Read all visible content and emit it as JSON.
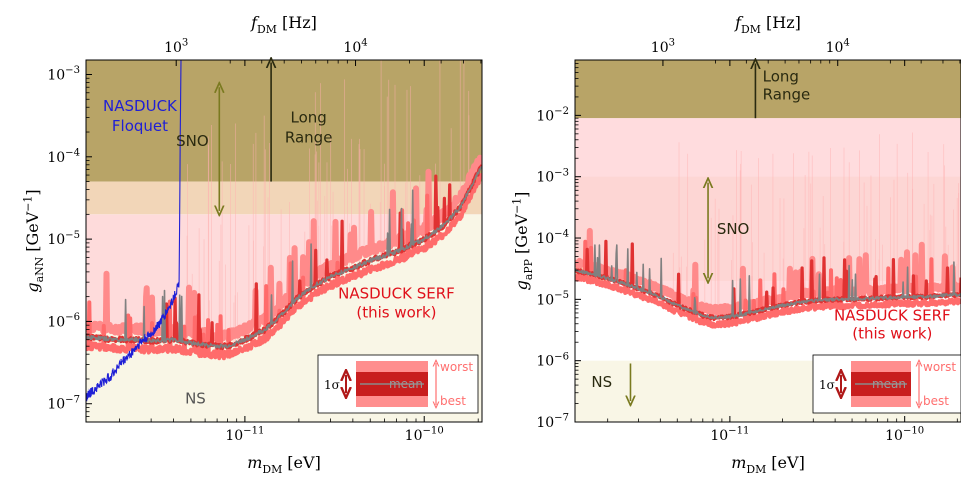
{
  "colors": {
    "long_range": "#b8a467",
    "sno": "#f2d6b8",
    "ns": "#f9f6e6",
    "serf_band": "#ffd6d8",
    "serf_worst": "#ff8a8a",
    "serf_best": "#e03232",
    "mean_line": "#808080",
    "nasduck_floquet": "#1f1fd6",
    "sno_arrow": "#7a7a20",
    "lr_arrow": "#2a2a10",
    "red_text": "#e0101a",
    "blue_text": "#1f1fd6"
  },
  "chart_data": [
    {
      "type": "line",
      "panel": "left",
      "xlabel": "m_DM [eV]",
      "ylabel": "g_aNN [GeV^-1]",
      "top_xlabel": "f_DM [Hz]",
      "xscale": "log",
      "yscale": "log",
      "xlim": [
        1.3e-12,
        2.1e-10
      ],
      "ylim": [
        6e-08,
        0.0015
      ],
      "x_ticks": [
        {
          "value": 1e-11,
          "label": "10^-11"
        },
        {
          "value": 1e-10,
          "label": "10^-10"
        }
      ],
      "y_ticks": [
        {
          "value": 1e-07,
          "label": "10^-7"
        },
        {
          "value": 1e-06,
          "label": "10^-6"
        },
        {
          "value": 1e-05,
          "label": "10^-5"
        },
        {
          "value": 0.0001,
          "label": "10^-4"
        },
        {
          "value": 0.001,
          "label": "10^-3"
        }
      ],
      "top_ticks": [
        {
          "value": 4.14e-12,
          "label": "10^3"
        },
        {
          "value": 4.14e-11,
          "label": "10^4"
        }
      ],
      "regions": [
        {
          "name": "Long Range",
          "ymin": 5e-05,
          "ymax": 0.0015,
          "color": "long_range"
        },
        {
          "name": "SNO",
          "ymin": 2e-05,
          "ymax": 5e-05,
          "color": "sno"
        },
        {
          "name": "NS",
          "ymin": 6e-08,
          "ymax": 2e-05,
          "color": "ns"
        }
      ],
      "series": [
        {
          "name": "NASDUCK SERF (this work)",
          "x": [
            1.3e-12,
            1.6e-12,
            2e-12,
            2.5e-12,
            3e-12,
            4e-12,
            5e-12,
            6e-12,
            7e-12,
            8e-12,
            1e-11,
            1.3e-11,
            1.6e-11,
            2e-11,
            2.5e-11,
            3e-11,
            4e-11,
            5e-11,
            7e-11,
            1e-10,
            1.3e-10,
            1.6e-10,
            2.1e-10
          ],
          "y": [
            6.5e-07,
            6.2e-07,
            6e-07,
            6e-07,
            5.8e-07,
            6e-07,
            5.5e-07,
            5.2e-07,
            5e-07,
            5e-07,
            6e-07,
            8e-07,
            1.2e-06,
            2e-06,
            2.8e-06,
            3.5e-06,
            4.5e-06,
            5.5e-06,
            7e-06,
            1e-05,
            1.5e-05,
            2.5e-05,
            8e-05
          ],
          "color": "mean_line"
        },
        {
          "name": "NASDUCK Floquet",
          "x": [
            1.3e-12,
            1.5e-12,
            1.8e-12,
            2e-12,
            2.3e-12,
            2.6e-12,
            3e-12,
            3.4e-12,
            3.8e-12,
            4.1e-12,
            4.3e-12,
            4.35e-12,
            4.4e-12
          ],
          "y": [
            1.2e-07,
            1.6e-07,
            2.2e-07,
            3e-07,
            4e-07,
            5.5e-07,
            7e-07,
            1e-06,
            1.5e-06,
            2.2e-06,
            3e-06,
            0.0001,
            0.0015
          ],
          "color": "nasduck_floquet"
        }
      ],
      "annotations": {
        "long_range": "Long\nRange",
        "sno": "SNO",
        "ns": "NS",
        "floquet": "NASDUCK\nFloquet",
        "serf": "NASDUCK SERF",
        "serf_sub": "(this work)"
      },
      "legend": {
        "placement": "lower-right",
        "sigma": "1σ",
        "mean": "mean",
        "worst": "worst",
        "best": "best"
      }
    },
    {
      "type": "line",
      "panel": "right",
      "xlabel": "m_DM [eV]",
      "ylabel": "g_aPP [GeV^-1]",
      "top_xlabel": "f_DM [Hz]",
      "xscale": "log",
      "yscale": "log",
      "xlim": [
        1.3e-12,
        2.1e-10
      ],
      "ylim": [
        1e-07,
        0.08
      ],
      "x_ticks": [
        {
          "value": 1e-11,
          "label": "10^-11"
        },
        {
          "value": 1e-10,
          "label": "10^-10"
        }
      ],
      "y_ticks": [
        {
          "value": 1e-07,
          "label": "10^-7"
        },
        {
          "value": 1e-06,
          "label": "10^-6"
        },
        {
          "value": 1e-05,
          "label": "10^-5"
        },
        {
          "value": 0.0001,
          "label": "10^-4"
        },
        {
          "value": 0.001,
          "label": "10^-3"
        },
        {
          "value": 0.01,
          "label": "10^-2"
        }
      ],
      "top_ticks": [
        {
          "value": 4.14e-12,
          "label": "10^3"
        },
        {
          "value": 4.14e-11,
          "label": "10^4"
        }
      ],
      "regions": [
        {
          "name": "Long Range",
          "ymin": 0.009,
          "ymax": 0.08,
          "color": "long_range"
        },
        {
          "name": "SNO",
          "ymin": 2e-05,
          "ymax": 0.001,
          "color": "sno"
        },
        {
          "name": "NS",
          "ymin": 1e-07,
          "ymax": 1e-06,
          "color": "ns"
        }
      ],
      "series": [
        {
          "name": "NASDUCK SERF (this work)",
          "x": [
            1.3e-12,
            1.6e-12,
            2e-12,
            2.5e-12,
            3e-12,
            4e-12,
            5e-12,
            6e-12,
            7e-12,
            8e-12,
            1e-11,
            1.3e-11,
            1.6e-11,
            2e-11,
            2.5e-11,
            3e-11,
            4e-11,
            5e-11,
            7e-11,
            1e-10,
            1.3e-10,
            1.6e-10,
            2.1e-10
          ],
          "y": [
            3e-05,
            2.6e-05,
            2.2e-05,
            1.8e-05,
            1.5e-05,
            1.1e-05,
            8e-06,
            6.5e-06,
            5.5e-06,
            5e-06,
            5.2e-06,
            6e-06,
            7e-06,
            8e-06,
            9e-06,
            9.5e-06,
            1e-05,
            1e-05,
            1.05e-05,
            1.1e-05,
            1.1e-05,
            1.15e-05,
            1.2e-05
          ],
          "color": "mean_line"
        }
      ],
      "annotations": {
        "long_range": "Long\nRange",
        "sno": "SNO",
        "ns": "NS",
        "serf": "NASDUCK SERF",
        "serf_sub": "(this work)"
      },
      "legend": {
        "placement": "lower-right",
        "sigma": "1σ",
        "mean": "mean",
        "worst": "worst",
        "best": "best"
      }
    }
  ]
}
